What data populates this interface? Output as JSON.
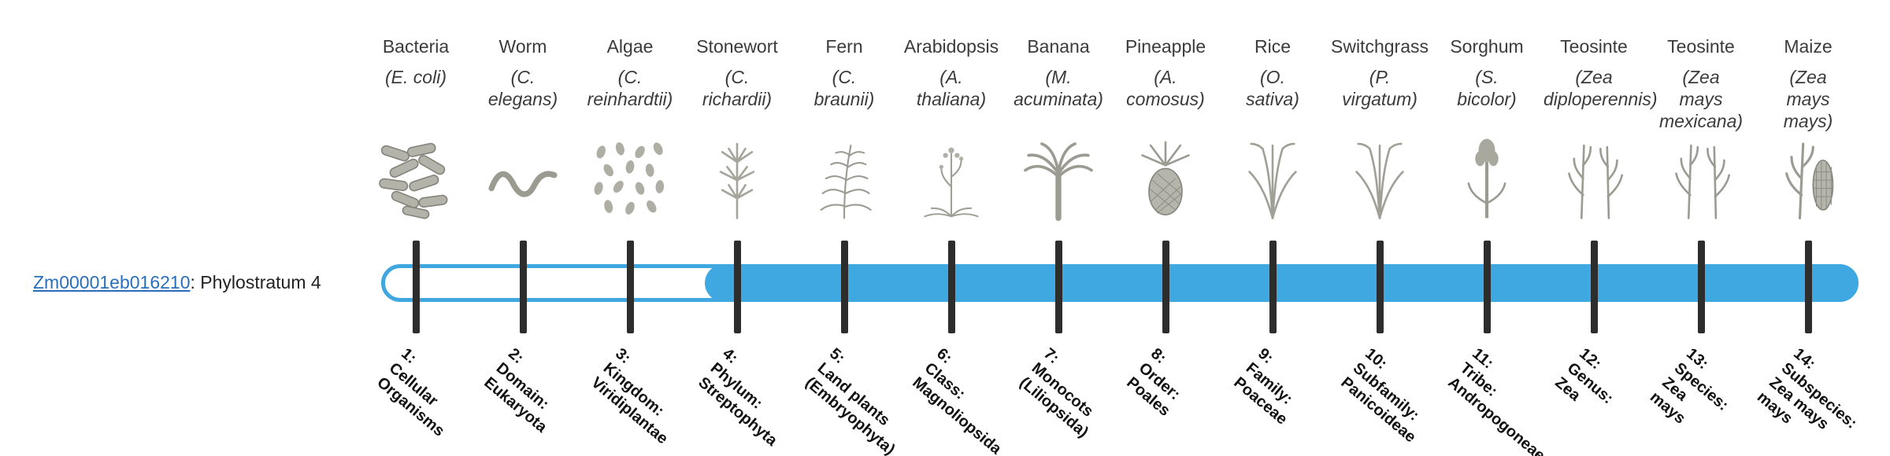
{
  "gene": {
    "id": "Zm00001eb016210",
    "label_suffix": ": Phylostratum 4"
  },
  "timeline": {
    "bar_color": "#3FA8E0",
    "tick_color": "#2D2D2D",
    "highlighted_stratum": 4,
    "strata": [
      {
        "num": 1,
        "organism": "Bacteria",
        "scientific_name": "(E. coli)",
        "icon": "bacteria-icon",
        "label_lines": [
          "1:",
          "Cellular",
          "Organisms"
        ]
      },
      {
        "num": 2,
        "organism": "Worm",
        "scientific_name": "(C. elegans)",
        "icon": "worm-icon",
        "label_lines": [
          "2:",
          "Domain:",
          "Eukaryota"
        ]
      },
      {
        "num": 3,
        "organism": "Algae",
        "scientific_name": "(C. reinhardtii)",
        "icon": "algae-icon",
        "label_lines": [
          "3:",
          "Kingdom:",
          "Viridiplantae"
        ]
      },
      {
        "num": 4,
        "organism": "Stonewort",
        "scientific_name": "(C. richardii)",
        "icon": "stonewort-icon",
        "label_lines": [
          "4:",
          "Phylum:",
          "Streptophyta"
        ]
      },
      {
        "num": 5,
        "organism": "Fern",
        "scientific_name": "(C. braunii)",
        "icon": "fern-icon",
        "label_lines": [
          "5:",
          "Land plants",
          "(Embryophyta)"
        ]
      },
      {
        "num": 6,
        "organism": "Arabidopsis",
        "scientific_name": "(A. thaliana)",
        "icon": "arabidopsis-icon",
        "label_lines": [
          "6:",
          "Class:",
          "Magnoliopsida"
        ]
      },
      {
        "num": 7,
        "organism": "Banana",
        "scientific_name": "(M. acuminata)",
        "icon": "banana-icon",
        "label_lines": [
          "7:",
          "Monocots",
          "(Liliopsida)"
        ]
      },
      {
        "num": 8,
        "organism": "Pineapple",
        "scientific_name": "(A. comosus)",
        "icon": "pineapple-icon",
        "label_lines": [
          "8:",
          "Order:",
          "Poales"
        ]
      },
      {
        "num": 9,
        "organism": "Rice",
        "scientific_name": "(O. sativa)",
        "icon": "rice-icon",
        "label_lines": [
          "9:",
          "Family:",
          "Poaceae"
        ]
      },
      {
        "num": 10,
        "organism": "Switchgrass",
        "scientific_name": "(P. virgatum)",
        "icon": "switchgrass-icon",
        "label_lines": [
          "10:",
          "Subfamily:",
          "Panicoideae"
        ]
      },
      {
        "num": 11,
        "organism": "Sorghum",
        "scientific_name": "(S. bicolor)",
        "icon": "sorghum-icon",
        "label_lines": [
          "11:",
          "Tribe:",
          "Andropogoneae"
        ]
      },
      {
        "num": 12,
        "organism": "Teosinte",
        "scientific_name": "(Zea diploperennis)",
        "icon": "teosinte-icon",
        "label_lines": [
          "12:",
          "Genus:",
          "Zea"
        ]
      },
      {
        "num": 13,
        "organism": "Teosinte",
        "scientific_name": "(Zea mays mexicana)",
        "icon": "teosinte-icon",
        "label_lines": [
          "13:",
          "Species:",
          "Zea",
          "mays"
        ]
      },
      {
        "num": 14,
        "organism": "Maize",
        "scientific_name": "(Zea mays mays)",
        "icon": "maize-icon",
        "label_lines": [
          "14:",
          "Subspecies:",
          "Zea mays",
          "mays"
        ]
      }
    ]
  }
}
